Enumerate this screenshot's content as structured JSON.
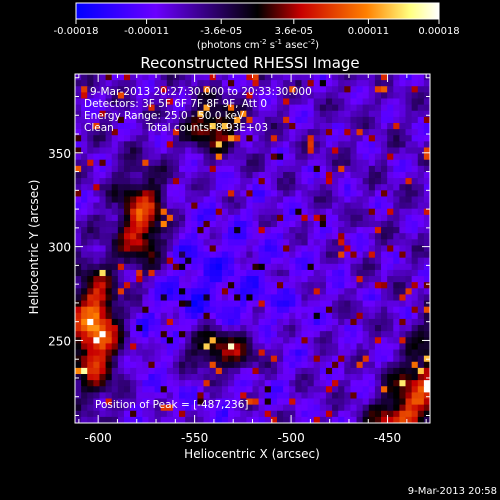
{
  "chart_data": {
    "type": "heatmap",
    "title": "Reconstructed RHESSI Image",
    "xlabel": "Heliocentric X (arcsec)",
    "ylabel": "Heliocentric Y (arcsec)",
    "xlim": [
      -612,
      -428
    ],
    "ylim": [
      206,
      392
    ],
    "x_ticks": [
      -600,
      -550,
      -500,
      -450
    ],
    "x_tick_labels": [
      "-600",
      "-550",
      "-500",
      "-450"
    ],
    "y_ticks": [
      250,
      300,
      350
    ],
    "y_tick_labels": [
      "250",
      "300",
      "350"
    ],
    "colorbar": {
      "min": -0.00018,
      "max": 0.00018,
      "ticks": [
        -0.00018,
        -0.00011,
        -3.6e-05,
        3.6e-05,
        0.00011,
        0.00018
      ],
      "tick_labels": [
        "-0.00018",
        "-0.00011",
        "-3.6e-05",
        "3.6e-05",
        "0.00011",
        "0.00018"
      ],
      "unit_label": "(photons cm-2 s-1 asec-2)",
      "colors": [
        "#0000ff",
        "#6a00ff",
        "#000000",
        "#c80000",
        "#ff8000",
        "#ffff80",
        "#ffffff"
      ]
    },
    "annotations": [
      "9-Mar-2013 20:27:30.000 to 20:33:30.000",
      "Detectors: 3F 5F 6F 7F 8F 9F, Att 0",
      "Energy Range: 25.0 - 50.0 keV",
      "Clean",
      "Total counts: 8.93E+03",
      "Position of Peak = [-487,236]"
    ],
    "footer_timestamp": "9-Mar-2013 20:58",
    "peak_position": [
      -487,
      236
    ]
  }
}
